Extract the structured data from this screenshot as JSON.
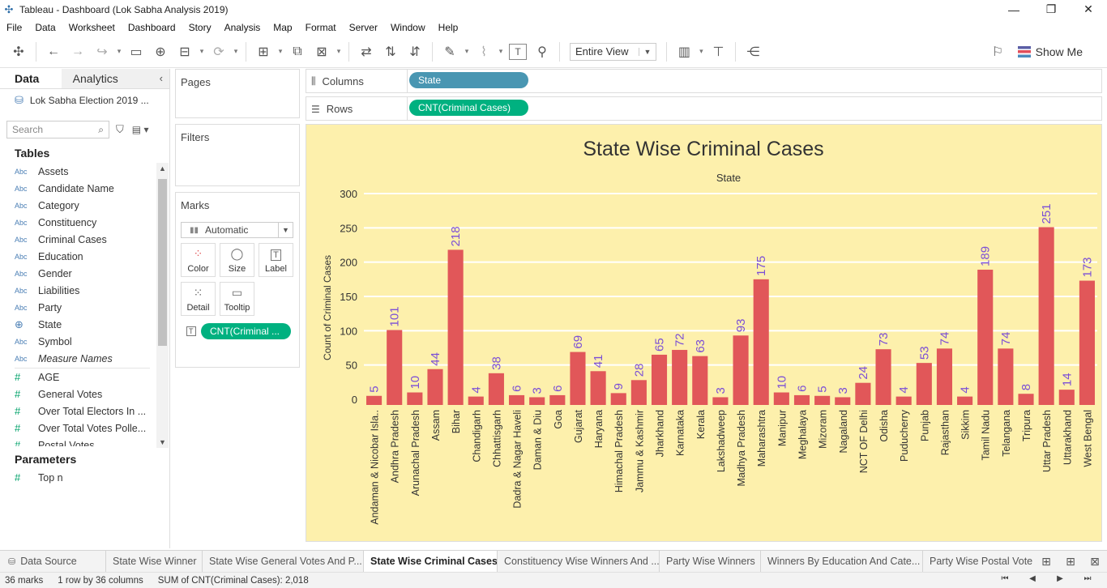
{
  "window": {
    "title": "Tableau - Dashboard (Lok Sabha Analysis 2019)",
    "minimize_icon": "minimize-icon",
    "restore_icon": "restore-icon",
    "close_icon": "close-icon"
  },
  "menu": [
    "File",
    "Data",
    "Worksheet",
    "Dashboard",
    "Story",
    "Analysis",
    "Map",
    "Format",
    "Server",
    "Window",
    "Help"
  ],
  "toolbar": {
    "fit_select": "Entire View",
    "show_me": "Show Me"
  },
  "datapane": {
    "tab_data": "Data",
    "tab_analytics": "Analytics",
    "datasource": "Lok Sabha Election 2019 ...",
    "search_placeholder": "Search",
    "tables_title": "Tables",
    "dimensions": [
      {
        "type": "Abc",
        "name": "Assets"
      },
      {
        "type": "Abc",
        "name": "Candidate Name"
      },
      {
        "type": "Abc",
        "name": "Category"
      },
      {
        "type": "Abc",
        "name": "Constituency"
      },
      {
        "type": "Abc",
        "name": "Criminal Cases"
      },
      {
        "type": "Abc",
        "name": "Education"
      },
      {
        "type": "Abc",
        "name": "Gender"
      },
      {
        "type": "Abc",
        "name": "Liabilities"
      },
      {
        "type": "Abc",
        "name": "Party"
      },
      {
        "type": "geo",
        "name": "State"
      },
      {
        "type": "Abc",
        "name": "Symbol"
      },
      {
        "type": "Abc",
        "name": "Measure Names"
      }
    ],
    "measures": [
      {
        "type": "#",
        "name": "AGE"
      },
      {
        "type": "#",
        "name": "General Votes"
      },
      {
        "type": "#",
        "name": "Over Total Electors  In ..."
      },
      {
        "type": "#",
        "name": "Over Total Votes Polle..."
      },
      {
        "type": "#",
        "name": "Postal Votes"
      }
    ],
    "parameters_title": "Parameters",
    "parameters": [
      {
        "type": "#",
        "name": "Top n"
      }
    ]
  },
  "cards": {
    "pages": "Pages",
    "filters": "Filters",
    "marks": "Marks",
    "mark_type": "Automatic",
    "mark_buttons": [
      "Color",
      "Size",
      "Label",
      "Detail",
      "Tooltip"
    ],
    "marks_pill": "CNT(Criminal ..."
  },
  "shelves": {
    "columns_label": "Columns",
    "columns_pill": "State",
    "rows_label": "Rows",
    "rows_pill": "CNT(Criminal Cases)"
  },
  "chart_data": {
    "type": "bar",
    "title": "State Wise Criminal Cases",
    "xlabel": "State",
    "ylabel": "Count of Criminal Cases",
    "ylim": [
      0,
      300
    ],
    "yticks": [
      0,
      50,
      100,
      150,
      200,
      250,
      300
    ],
    "grid": true,
    "bar_color": "#e15759",
    "label_color": "#7b4fd6",
    "background": "#fdf0ac",
    "categories": [
      "Andaman & Nicobar Isla..",
      "Andhra Pradesh",
      "Arunachal Pradesh",
      "Assam",
      "Bihar",
      "Chandigarh",
      "Chhattisgarh",
      "Dadra & Nagar Haveli",
      "Daman & Diu",
      "Goa",
      "Gujarat",
      "Haryana",
      "Himachal Pradesh",
      "Jammu & Kashmir",
      "Jharkhand",
      "Karnataka",
      "Kerala",
      "Lakshadweep",
      "Madhya Pradesh",
      "Maharashtra",
      "Manipur",
      "Meghalaya",
      "Mizoram",
      "Nagaland",
      "NCT OF Delhi",
      "Odisha",
      "Puducherry",
      "Punjab",
      "Rajasthan",
      "Sikkim",
      "Tamil Nadu",
      "Telangana",
      "Tripura",
      "Uttar Pradesh",
      "Uttarakhand",
      "West Bengal"
    ],
    "values": [
      5,
      101,
      10,
      44,
      218,
      4,
      38,
      6,
      3,
      6,
      69,
      41,
      9,
      28,
      65,
      72,
      63,
      3,
      93,
      175,
      10,
      6,
      5,
      3,
      24,
      73,
      4,
      53,
      74,
      4,
      189,
      74,
      8,
      251,
      14,
      173
    ]
  },
  "sheet_tabs": {
    "datasource": "Data Source",
    "tabs": [
      "State Wise Winner",
      "State Wise General Votes And P...",
      "State Wise Criminal Cases",
      "Constituency Wise Winners And ...",
      "Party Wise Winners",
      "Winners By Education And Cate...",
      "Party Wise Postal Vote"
    ],
    "active_index": 2
  },
  "status": {
    "marks": "36 marks",
    "dims": "1 row by 36 columns",
    "sum": "SUM of CNT(Criminal Cases): 2,018"
  }
}
